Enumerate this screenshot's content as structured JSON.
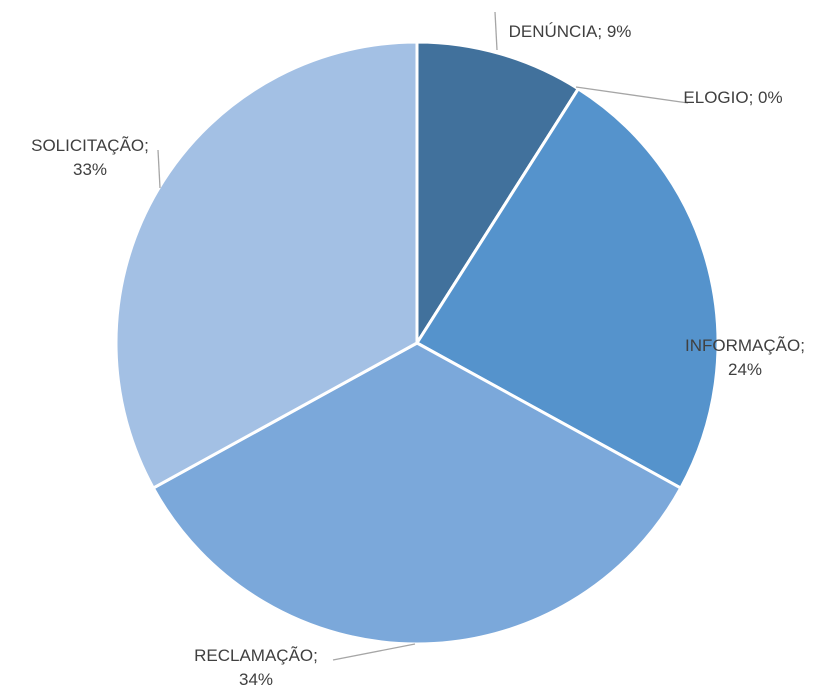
{
  "chart_data": {
    "type": "pie",
    "labels": [
      "DENÚNCIA; 9%",
      "ELOGIO; 0%",
      "INFORMAÇÃO; 24%",
      "RECLAMAÇÃO; 34%",
      "SOLICITAÇÃO; 33%"
    ],
    "values": [
      9,
      0,
      24,
      34,
      33
    ],
    "colors": [
      "#41719c",
      "#4a80b8",
      "#5593cc",
      "#7ba8da",
      "#a3c0e4"
    ]
  }
}
